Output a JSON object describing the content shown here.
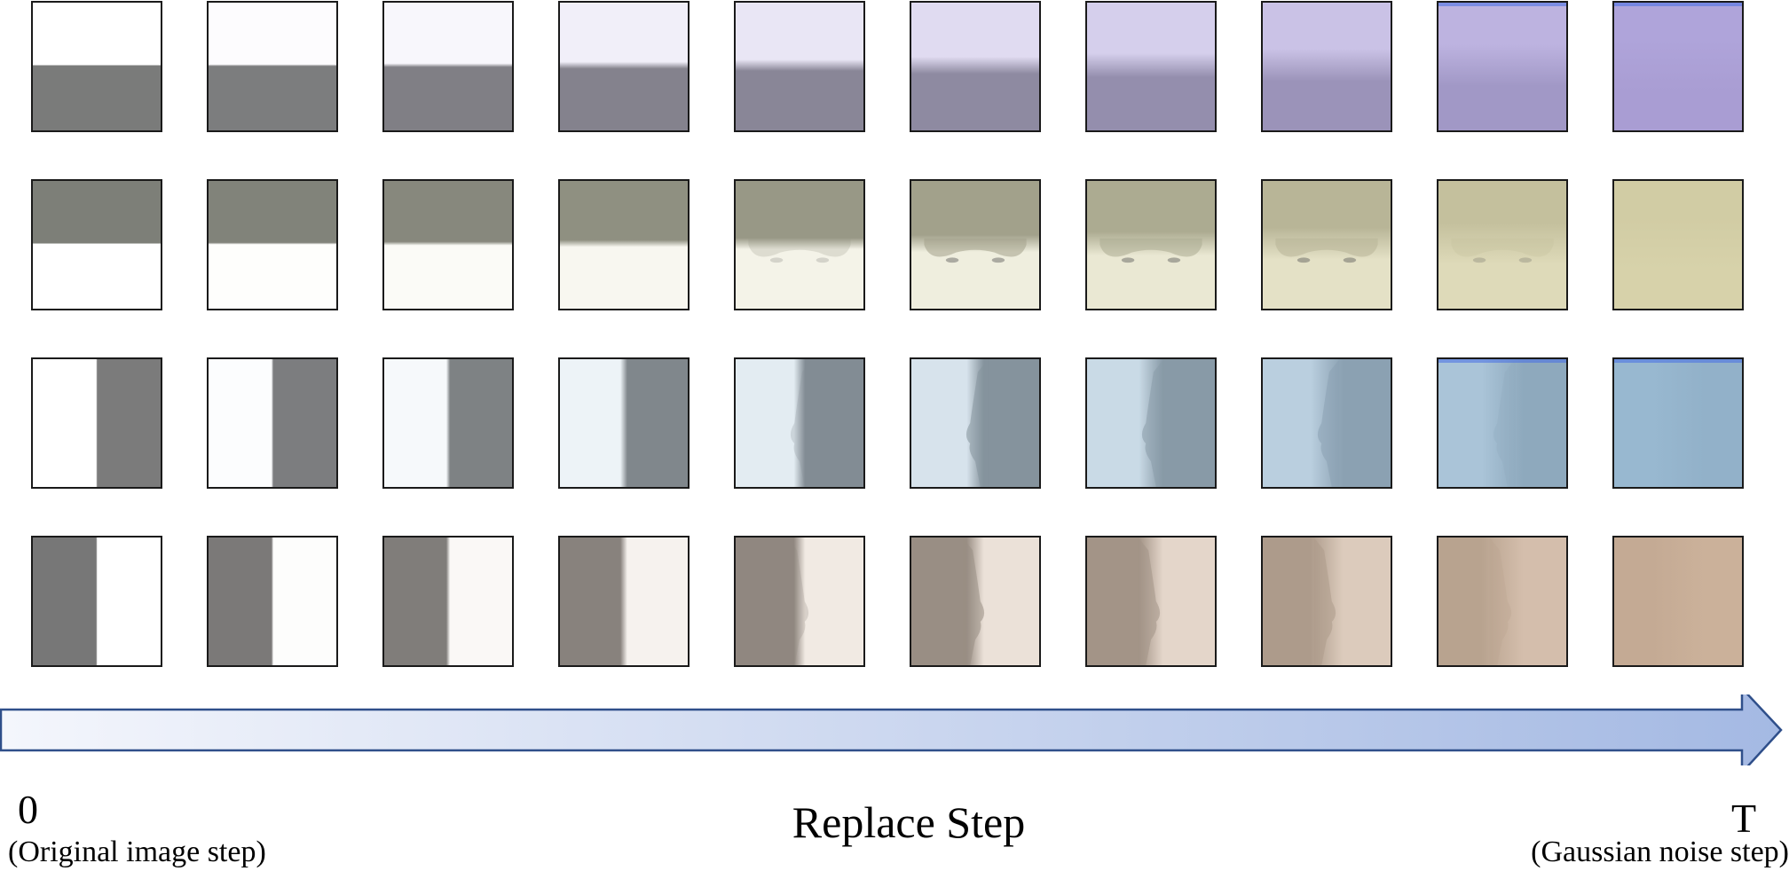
{
  "figure": {
    "rows": [
      {
        "kind": "top-gray-bottom-white",
        "base": "#7a7b7a",
        "light": "#ffffff",
        "noise": "#ab9fd8",
        "face": false,
        "flipped": false
      },
      {
        "kind": "top-gray-bottom-white-face",
        "base": "#7d7f78",
        "light": "#ffffff",
        "noise": "#d5d0a6",
        "face": true,
        "flipped": false
      },
      {
        "kind": "left-white-right-gray",
        "base": "#7b7b7b",
        "light": "#ffffff",
        "noise": "#93b4cd",
        "face": true,
        "flipped": false
      },
      {
        "kind": "left-gray-right-white",
        "base": "#777777",
        "light": "#ffffff",
        "noise": "#c8ad95",
        "face": true,
        "flipped": true
      }
    ],
    "steps": 10
  },
  "arrow": {
    "fill_start": "#f4f6fc",
    "fill_end": "#a4b9e3",
    "stroke": "#2f4f8a"
  },
  "labels": {
    "start_value": "0",
    "start_caption": "(Original image step)",
    "axis_title": "Replace Step",
    "end_value": "T",
    "end_caption": "(Gaussian noise step)"
  }
}
